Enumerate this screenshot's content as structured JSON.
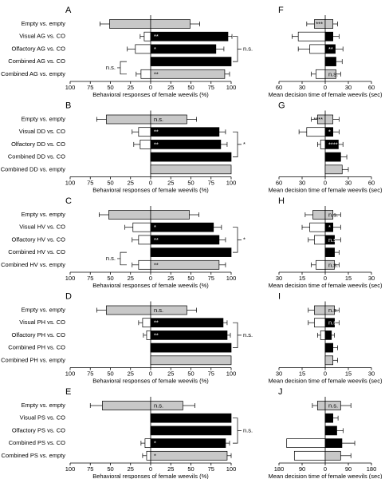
{
  "chart_data": [
    {
      "type": "diverging_bar",
      "label": "A",
      "xlabel": "Behavioral responses of female weevils (%)",
      "categories": [
        "Empty vs. empty",
        "Visual AG vs. CO",
        "Olfactory AG vs. CO",
        "Combined AG vs. CO",
        "Combined AG vs. empty"
      ],
      "xlim": [
        -100,
        100
      ],
      "xticks": [
        {
          "value": -100,
          "label": "100"
        },
        {
          "value": -75,
          "label": "75"
        },
        {
          "value": -50,
          "label": "50"
        },
        {
          "value": -25,
          "label": "25"
        },
        0,
        25,
        50,
        75,
        100
      ],
      "series": [
        {
          "values": [
            -51,
            -8,
            -19,
            0,
            -12
          ],
          "errors": [
            12,
            5,
            10,
            0,
            6
          ],
          "colors": [
            "#c8c8c8",
            "#ffffff",
            "#ffffff",
            "#ffffff",
            "#ffffff"
          ],
          "sig": [
            null,
            null,
            null,
            null,
            null
          ]
        },
        {
          "values": [
            49,
            96,
            81,
            100,
            92
          ],
          "errors": [
            12,
            5,
            10,
            0,
            6
          ],
          "colors": [
            "#c8c8c8",
            "#000000",
            "#000000",
            "#000000",
            "#c8c8c8"
          ],
          "sig": [
            null,
            "**",
            "*",
            null,
            "**"
          ]
        }
      ],
      "brackets": [
        {
          "rows": [
            1,
            3
          ],
          "side": "right",
          "text": "n.s."
        },
        {
          "rows": [
            3,
            4
          ],
          "side": "left",
          "text": "n.s."
        }
      ]
    },
    {
      "type": "diverging_bar",
      "label": "B",
      "xlabel": "Behavioral responses of female weevils (%)",
      "categories": [
        "Empty vs. empty",
        "Visual DD vs. CO",
        "Olfactory DD vs. CO",
        "Combined DD vs. CO",
        "Combined DD vs. empty"
      ],
      "xlim": [
        -100,
        100
      ],
      "xticks": [
        {
          "value": -100,
          "label": "100"
        },
        {
          "value": -75,
          "label": "75"
        },
        {
          "value": -50,
          "label": "50"
        },
        {
          "value": -25,
          "label": "25"
        },
        0,
        25,
        50,
        75,
        100
      ],
      "series": [
        {
          "values": [
            -55,
            -15,
            -13,
            0,
            0
          ],
          "errors": [
            12,
            8,
            8,
            0,
            0
          ],
          "colors": [
            "#c8c8c8",
            "#ffffff",
            "#ffffff",
            "#ffffff",
            "#ffffff"
          ],
          "sig": [
            null,
            null,
            null,
            null,
            null
          ]
        },
        {
          "values": [
            45,
            85,
            87,
            100,
            100
          ],
          "errors": [
            12,
            8,
            8,
            0,
            0
          ],
          "colors": [
            "#c8c8c8",
            "#000000",
            "#000000",
            "#000000",
            "#c8c8c8"
          ],
          "sig": [
            "n.s.",
            "**",
            "**",
            null,
            null
          ]
        }
      ],
      "brackets": [
        {
          "rows": [
            1,
            3
          ],
          "side": "right",
          "text": "*"
        }
      ]
    },
    {
      "type": "diverging_bar",
      "label": "C",
      "xlabel": "Behavioral responses of female weevils (%)",
      "categories": [
        "Empty vs. empty",
        "Visual HV vs. CO",
        "Olfactory HV vs. CO",
        "Combined HV vs. CO",
        "Combined HV vs. empty"
      ],
      "xlim": [
        -100,
        100
      ],
      "xticks": [
        {
          "value": -100,
          "label": "100"
        },
        {
          "value": -75,
          "label": "75"
        },
        {
          "value": -50,
          "label": "50"
        },
        {
          "value": -25,
          "label": "25"
        },
        0,
        25,
        50,
        75,
        100
      ],
      "series": [
        {
          "values": [
            -52,
            -22,
            -15,
            0,
            -15
          ],
          "errors": [
            12,
            10,
            8,
            0,
            8
          ],
          "colors": [
            "#c8c8c8",
            "#ffffff",
            "#ffffff",
            "#ffffff",
            "#ffffff"
          ],
          "sig": [
            null,
            null,
            null,
            null,
            null
          ]
        },
        {
          "values": [
            48,
            78,
            85,
            100,
            85
          ],
          "errors": [
            12,
            10,
            8,
            0,
            8
          ],
          "colors": [
            "#c8c8c8",
            "#000000",
            "#000000",
            "#000000",
            "#c8c8c8"
          ],
          "sig": [
            null,
            "*",
            "**",
            null,
            "**"
          ]
        }
      ],
      "brackets": [
        {
          "rows": [
            1,
            3
          ],
          "side": "right",
          "text": "*"
        },
        {
          "rows": [
            3,
            4
          ],
          "side": "left",
          "text": "n.s."
        }
      ]
    },
    {
      "type": "diverging_bar",
      "label": "D",
      "xlabel": "Behavioral responses of female weevils (%)",
      "categories": [
        "Empty vs. empty",
        "Visual PH vs. CO",
        "Olfactory PH vs. CO",
        "Combined PH vs. CO",
        "Combined PH vs. empty"
      ],
      "xlim": [
        -100,
        100
      ],
      "xticks": [
        {
          "value": -100,
          "label": "100"
        },
        {
          "value": -75,
          "label": "75"
        },
        {
          "value": -50,
          "label": "50"
        },
        {
          "value": -25,
          "label": "25"
        },
        0,
        25,
        50,
        75,
        100
      ],
      "series": [
        {
          "values": [
            -55,
            -10,
            -5,
            0,
            0
          ],
          "errors": [
            12,
            5,
            4,
            0,
            0
          ],
          "colors": [
            "#c8c8c8",
            "#ffffff",
            "#ffffff",
            "#ffffff",
            "#ffffff"
          ],
          "sig": [
            null,
            null,
            null,
            null,
            null
          ]
        },
        {
          "values": [
            45,
            90,
            95,
            100,
            100
          ],
          "errors": [
            12,
            5,
            4,
            0,
            0
          ],
          "colors": [
            "#c8c8c8",
            "#000000",
            "#000000",
            "#000000",
            "#c8c8c8"
          ],
          "sig": [
            "n.s.",
            "**",
            "**",
            null,
            null
          ]
        }
      ],
      "brackets": [
        {
          "rows": [
            1,
            3
          ],
          "side": "right",
          "text": "n.s."
        }
      ]
    },
    {
      "type": "diverging_bar",
      "label": "E",
      "xlabel": "Behavioral responses of female weevils (%)",
      "categories": [
        "Empty vs. empty",
        "Visual PS vs. CO",
        "Olfactory PS vs. CO",
        "Combined PS vs. CO",
        "Combined PS vs. empty"
      ],
      "xlim": [
        -100,
        100
      ],
      "xticks": [
        {
          "value": -100,
          "label": "100"
        },
        {
          "value": -75,
          "label": "75"
        },
        {
          "value": -50,
          "label": "50"
        },
        {
          "value": -25,
          "label": "25"
        },
        0,
        25,
        50,
        75,
        100
      ],
      "series": [
        {
          "values": [
            -60,
            0,
            0,
            -7,
            -5
          ],
          "errors": [
            15,
            0,
            0,
            5,
            5
          ],
          "colors": [
            "#c8c8c8",
            "#ffffff",
            "#ffffff",
            "#ffffff",
            "#ffffff"
          ],
          "sig": [
            null,
            null,
            null,
            null,
            null
          ]
        },
        {
          "values": [
            40,
            100,
            100,
            93,
            95
          ],
          "errors": [
            15,
            0,
            0,
            5,
            5
          ],
          "colors": [
            "#c8c8c8",
            "#000000",
            "#000000",
            "#000000",
            "#c8c8c8"
          ],
          "sig": [
            "n.s.",
            null,
            null,
            "*",
            "*"
          ]
        }
      ],
      "brackets": [
        {
          "rows": [
            1,
            3
          ],
          "side": "right",
          "text": "n.s."
        }
      ]
    },
    {
      "type": "diverging_bar",
      "label": "F",
      "xlabel": "Mean decision time of female weevils (sec)",
      "xlim": [
        -60,
        60
      ],
      "xticks": [
        {
          "value": -60,
          "label": "60"
        },
        {
          "value": -30,
          "label": "30"
        },
        0,
        30,
        60
      ],
      "series": [
        {
          "values": [
            -14,
            -35,
            -20,
            0,
            -12
          ],
          "errors": [
            10,
            8,
            15,
            0,
            6
          ],
          "colors": [
            "#c8c8c8",
            "#ffffff",
            "#ffffff",
            "#ffffff",
            "#ffffff"
          ],
          "sig": [
            "***",
            null,
            null,
            null,
            null
          ]
        },
        {
          "values": [
            10,
            10,
            13,
            14,
            14
          ],
          "errors": [
            6,
            8,
            10,
            8,
            6
          ],
          "colors": [
            "#c8c8c8",
            "#000000",
            "#000000",
            "#000000",
            "#c8c8c8"
          ],
          "sig": [
            null,
            null,
            "**",
            null,
            "n.s."
          ]
        }
      ]
    },
    {
      "type": "diverging_bar",
      "label": "G",
      "xlabel": "Mean decision time of female weevils (sec)",
      "xlim": [
        -60,
        60
      ],
      "xticks": [
        {
          "value": -60,
          "label": "60"
        },
        {
          "value": -30,
          "label": "30"
        },
        0,
        30,
        60
      ],
      "series": [
        {
          "values": [
            -10,
            -24,
            -6,
            0,
            0
          ],
          "errors": [
            8,
            10,
            4,
            0,
            0
          ],
          "colors": [
            "#c8c8c8",
            "#ffffff",
            "#ffffff",
            "#ffffff",
            "#ffffff"
          ],
          "sig": [
            "****",
            null,
            null,
            null,
            null
          ]
        },
        {
          "values": [
            10,
            10,
            17,
            20,
            22
          ],
          "errors": [
            8,
            8,
            6,
            8,
            8
          ],
          "colors": [
            "#c8c8c8",
            "#000000",
            "#000000",
            "#000000",
            "#c8c8c8"
          ],
          "sig": [
            null,
            "*",
            "****",
            null,
            null
          ]
        }
      ]
    },
    {
      "type": "diverging_bar",
      "label": "H",
      "xlabel": "Mean decision time of female weevils (sec)",
      "xlim": [
        -30,
        30
      ],
      "xticks": [
        {
          "value": -30,
          "label": "30"
        },
        {
          "value": -15,
          "label": "15"
        },
        0,
        15,
        30
      ],
      "series": [
        {
          "values": [
            -8,
            -10,
            -7,
            0,
            -6
          ],
          "errors": [
            5,
            5,
            4,
            0,
            3
          ],
          "colors": [
            "#c8c8c8",
            "#ffffff",
            "#ffffff",
            "#ffffff",
            "#ffffff"
          ],
          "sig": [
            null,
            null,
            null,
            null,
            null
          ]
        },
        {
          "values": [
            5,
            5,
            6,
            6,
            6
          ],
          "errors": [
            5,
            5,
            4,
            3,
            3
          ],
          "colors": [
            "#c8c8c8",
            "#000000",
            "#000000",
            "#000000",
            "#c8c8c8"
          ],
          "sig": [
            "n.s.",
            "*",
            "n.s.",
            null,
            "n.s."
          ]
        }
      ]
    },
    {
      "type": "diverging_bar",
      "label": "I",
      "xlabel": "Mean decision time of female weevils (sec)",
      "xlim": [
        -30,
        30
      ],
      "xticks": [
        {
          "value": -30,
          "label": "30"
        },
        {
          "value": -15,
          "label": "15"
        },
        0,
        15,
        30
      ],
      "series": [
        {
          "values": [
            -7,
            -7,
            -3,
            0,
            0
          ],
          "errors": [
            4,
            4,
            2,
            0,
            0
          ],
          "colors": [
            "#c8c8c8",
            "#ffffff",
            "#ffffff",
            "#ffffff",
            "#ffffff"
          ],
          "sig": [
            null,
            null,
            null,
            null,
            null
          ]
        },
        {
          "values": [
            6,
            6,
            4,
            5,
            5
          ],
          "errors": [
            3,
            3,
            2,
            3,
            3
          ],
          "colors": [
            "#c8c8c8",
            "#000000",
            "#000000",
            "#000000",
            "#c8c8c8"
          ],
          "sig": [
            "n.s.",
            "n.s.",
            null,
            null,
            null
          ]
        }
      ]
    },
    {
      "type": "diverging_bar",
      "label": "J",
      "xlabel": "Mean decision time of female weevils (sec)",
      "xlim": [
        -180,
        180
      ],
      "xticks": [
        {
          "value": -180,
          "label": "180"
        },
        {
          "value": -90,
          "label": "90"
        },
        0,
        90,
        180
      ],
      "series": [
        {
          "values": [
            -30,
            0,
            0,
            -150,
            -120
          ],
          "errors": [
            20,
            0,
            0,
            0,
            0
          ],
          "colors": [
            "#c8c8c8",
            "#ffffff",
            "#ffffff",
            "#ffffff",
            "#ffffff"
          ],
          "sig": [
            null,
            null,
            null,
            null,
            null
          ]
        },
        {
          "values": [
            60,
            30,
            45,
            65,
            60
          ],
          "errors": [
            40,
            20,
            25,
            50,
            40
          ],
          "colors": [
            "#c8c8c8",
            "#000000",
            "#000000",
            "#000000",
            "#c8c8c8"
          ],
          "sig": [
            "n.s.",
            null,
            null,
            null,
            null
          ]
        }
      ]
    }
  ]
}
